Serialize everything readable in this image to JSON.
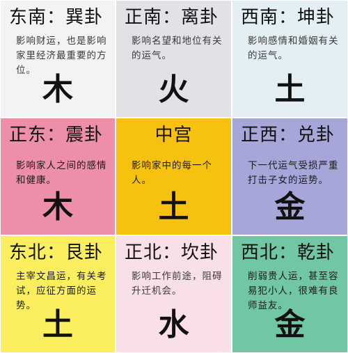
{
  "colors": {
    "southeast": "#f3f3f3",
    "south": "#e2e2e6",
    "southwest": "#e3eff2",
    "east": "#ee8fa9",
    "center": "#f7c10f",
    "west": "#a7a6d9",
    "northeast": "#fbef5f",
    "north": "#f9dfe7",
    "northwest": "#71c6a3"
  },
  "cells": [
    {
      "title": "东南：巽卦",
      "desc": "影响财运，也是影响家里经济最重要的方位。",
      "element": "木"
    },
    {
      "title": "正南：离卦",
      "desc": "影响名望和地位有关的运气。",
      "element": "火"
    },
    {
      "title": "西南：坤卦",
      "desc": "影响感情和婚姻有关的运气。",
      "element": "土"
    },
    {
      "title": "正东：震卦",
      "desc": "影响家人之间的感情和健康。",
      "element": "木"
    },
    {
      "title": "中宫",
      "desc": "影响家中的每一个人。",
      "element": "土"
    },
    {
      "title": "正西：兑卦",
      "desc": "下一代运气受损严重打击子女的运势。",
      "element": "金"
    },
    {
      "title": "东北：艮卦",
      "desc": "主宰文昌运，有关考试，应征方面的运势。",
      "element": "土"
    },
    {
      "title": "正北：坎卦",
      "desc": "影响工作前途，阻碍升迁机会。",
      "element": "水"
    },
    {
      "title": "西北：乾卦",
      "desc": "削弱贵人运，甚至容易犯小人，很难有良师益友。",
      "element": "金"
    }
  ]
}
